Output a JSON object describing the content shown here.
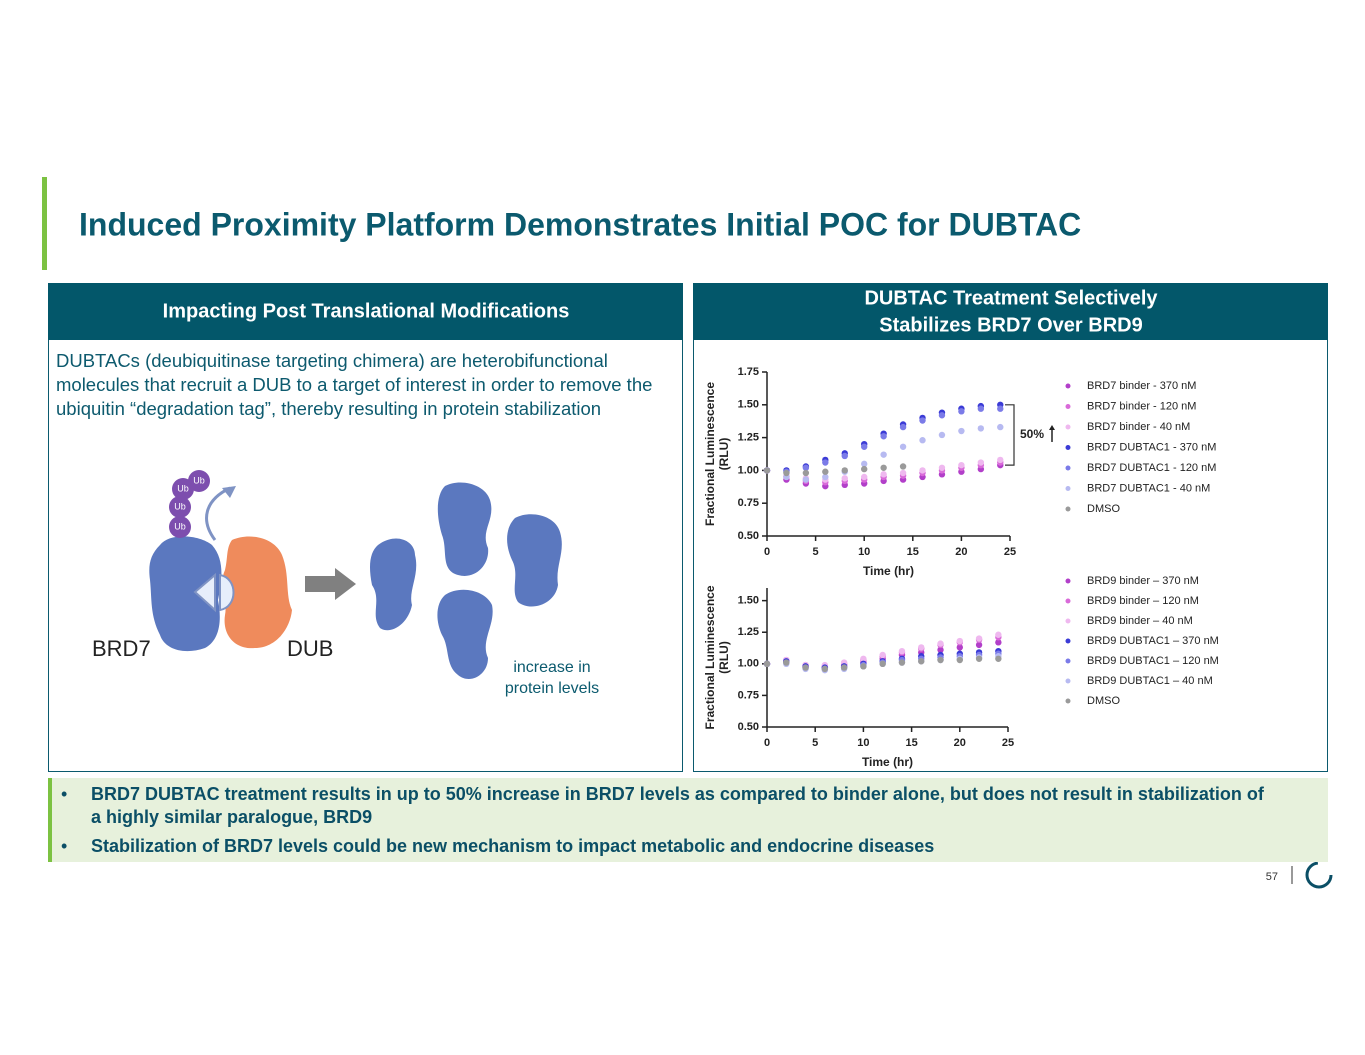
{
  "header": {
    "title": "Induced Proximity Platform Demonstrates Initial POC for DUBTAC"
  },
  "left_panel": {
    "heading": "Impacting Post Translational Modifications",
    "body": "DUBTACs (deubiquitinase targeting chimera) are heterobifunctional molecules that recruit a DUB to a target of interest in order to remove the ubiquitin “degradation tag”, thereby resulting in protein stabilization",
    "diagram": {
      "ub_labels": [
        "Ub",
        "Ub",
        "Ub",
        "Ub"
      ],
      "target": "BRD7",
      "dub": "DUB",
      "result": "increase in protein levels"
    }
  },
  "right_panel": {
    "heading_line1": "DUBTAC Treatment Selectively",
    "heading_line2": "Stabilizes BRD7 Over BRD9"
  },
  "chart_data": [
    {
      "type": "scatter",
      "x_label": "Time (hr)",
      "y_label": "Fractional  Luminescence",
      "y_label_unit": "(RLU)",
      "annotation": "50%",
      "x": [
        0,
        2,
        4,
        6,
        8,
        10,
        12,
        14,
        16,
        18,
        20,
        22,
        24
      ],
      "xlim": [
        0,
        25
      ],
      "xticks": [
        0,
        5,
        10,
        15,
        20,
        25
      ],
      "ylim": [
        0.5,
        1.75
      ],
      "yticks": [
        {
          "value": 0.5,
          "label": "0.50"
        },
        0.75,
        {
          "value": 1,
          "label": "1.00"
        },
        1.25,
        {
          "value": 1.5,
          "label": "1.50"
        },
        1.75
      ],
      "series": [
        {
          "name": "BRD7 binder - 370 nM",
          "color": "#b23fc9",
          "values": [
            1.0,
            0.93,
            0.9,
            0.88,
            0.89,
            0.9,
            0.92,
            0.93,
            0.95,
            0.97,
            0.99,
            1.01,
            1.04
          ]
        },
        {
          "name": "BRD7 binder -  120 nM",
          "color": "#d96ad9",
          "values": [
            1.0,
            0.95,
            0.92,
            0.91,
            0.92,
            0.93,
            0.95,
            0.96,
            0.98,
            1.0,
            1.02,
            1.04,
            1.06
          ]
        },
        {
          "name": "BRD7 binder -  40 nM",
          "color": "#efb8ef",
          "values": [
            1.0,
            0.96,
            0.94,
            0.93,
            0.94,
            0.95,
            0.97,
            0.98,
            1.0,
            1.02,
            1.04,
            1.06,
            1.08
          ]
        },
        {
          "name": "BRD7 DUBTAC1 -  370 nM",
          "color": "#3b3bd6",
          "values": [
            1.0,
            1.0,
            1.03,
            1.08,
            1.13,
            1.2,
            1.28,
            1.35,
            1.4,
            1.44,
            1.47,
            1.49,
            1.5
          ]
        },
        {
          "name": "BRD7 DUBTAC1 - 120 nM",
          "color": "#7b7be8",
          "values": [
            1.0,
            0.99,
            1.02,
            1.06,
            1.11,
            1.18,
            1.26,
            1.33,
            1.38,
            1.42,
            1.45,
            1.47,
            1.47
          ]
        },
        {
          "name": "BRD7 DUBTAC1 -  40 nM",
          "color": "#b7baf1",
          "values": [
            1.0,
            0.95,
            0.93,
            0.95,
            0.99,
            1.05,
            1.12,
            1.18,
            1.23,
            1.27,
            1.3,
            1.32,
            1.33
          ]
        },
        {
          "name": "DMSO",
          "color": "#9a9a9a",
          "values": [
            1.0,
            0.98,
            0.98,
            0.99,
            1.0,
            1.01,
            1.02,
            1.03,
            null,
            null,
            null,
            null,
            null
          ]
        }
      ]
    },
    {
      "type": "scatter",
      "x_label": "Time (hr)",
      "y_label": "Fractional  Luminescence",
      "y_label_unit": "(RLU)",
      "x": [
        0,
        2,
        4,
        6,
        8,
        10,
        12,
        14,
        16,
        18,
        20,
        22,
        24
      ],
      "xlim": [
        0,
        25
      ],
      "xticks": [
        0,
        5,
        10,
        15,
        20,
        25
      ],
      "ylim": [
        0.5,
        1.6
      ],
      "yticks": [
        {
          "value": 0.5,
          "label": "0.50"
        },
        0.75,
        {
          "value": 1,
          "label": "1.00"
        },
        1.25,
        {
          "value": 1.5,
          "label": "1.50"
        }
      ],
      "series": [
        {
          "name": "BRD9 binder – 370 nM",
          "color": "#b23fc9",
          "values": [
            1.0,
            1.02,
            0.98,
            0.97,
            0.99,
            1.01,
            1.04,
            1.07,
            1.09,
            1.11,
            1.13,
            1.15,
            1.17
          ]
        },
        {
          "name": "BRD9 binder – 120 nM",
          "color": "#d96ad9",
          "values": [
            1.0,
            1.03,
            0.99,
            0.98,
            1.0,
            1.03,
            1.06,
            1.09,
            1.12,
            1.15,
            1.17,
            1.19,
            1.21
          ]
        },
        {
          "name": "BRD9 binder – 40 nM",
          "color": "#efb8ef",
          "values": [
            1.0,
            1.03,
            0.99,
            0.99,
            1.01,
            1.04,
            1.07,
            1.1,
            1.13,
            1.16,
            1.18,
            1.2,
            1.23
          ]
        },
        {
          "name": "BRD9 DUBTAC1 – 370 nM",
          "color": "#3b3bd6",
          "values": [
            1.0,
            1.02,
            0.98,
            0.97,
            0.98,
            1.0,
            1.02,
            1.04,
            1.06,
            1.07,
            1.08,
            1.09,
            1.1
          ]
        },
        {
          "name": "BRD9 DUBTAC1 – 120 nM",
          "color": "#7b7be8",
          "values": [
            1.0,
            1.01,
            0.97,
            0.96,
            0.97,
            0.99,
            1.01,
            1.03,
            1.04,
            1.05,
            1.06,
            1.07,
            1.08
          ]
        },
        {
          "name": "BRD9 DUBTAC1 – 40 nM",
          "color": "#b7baf1",
          "values": [
            1.0,
            1.0,
            0.96,
            0.95,
            0.96,
            0.98,
            1.0,
            1.01,
            1.02,
            1.03,
            1.04,
            1.05,
            1.06
          ]
        },
        {
          "name": "DMSO",
          "color": "#9a9a9a",
          "values": [
            1.0,
            1.01,
            0.97,
            0.96,
            0.97,
            0.98,
            1.0,
            1.01,
            1.02,
            1.03,
            1.03,
            1.04,
            1.04
          ]
        }
      ]
    }
  ],
  "bullets": [
    "BRD7 DUBTAC treatment results in up to 50% increase in BRD7 levels as compared to binder alone, but does not result in stabilization of a highly similar paralogue, BRD9",
    "Stabilization of BRD7 levels could be new mechanism to impact metabolic and endocrine diseases"
  ],
  "footer": {
    "page_number": "57"
  }
}
